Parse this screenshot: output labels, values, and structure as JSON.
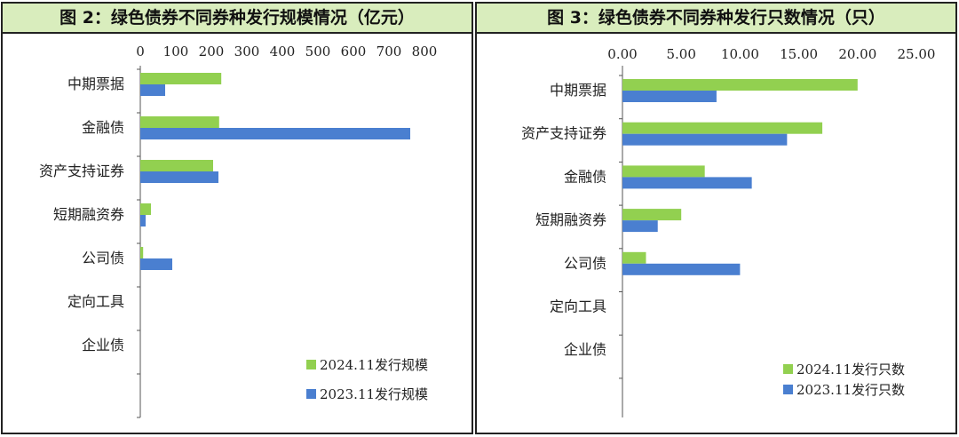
{
  "chart_data": [
    {
      "type": "bar",
      "title": "图 2：绿色债券不同券种发行规模情况（亿元）",
      "categories": [
        "中期票据",
        "金融债",
        "资产支持证券",
        "短期融资券",
        "公司债",
        "定向工具",
        "企业债"
      ],
      "series": [
        {
          "name": "2024.11发行规模",
          "color": "#92d050",
          "values": [
            228,
            222,
            205,
            30,
            8,
            0,
            0
          ]
        },
        {
          "name": "2023.11发行规模",
          "color": "#4a7fd0",
          "values": [
            70,
            760,
            220,
            15,
            90,
            0,
            0
          ]
        }
      ],
      "xticks": [
        "0",
        "100",
        "200",
        "300",
        "400",
        "500",
        "600",
        "700",
        "800"
      ],
      "xlim": [
        0,
        800
      ],
      "orientation": "horizontal",
      "axis_position": "top",
      "legend": "bottom-right"
    },
    {
      "type": "bar",
      "title": "图 3：绿色债券不同券种发行只数情况（只）",
      "categories": [
        "中期票据",
        "资产支持证券",
        "金融债",
        "短期融资券",
        "公司债",
        "定向工具",
        "企业债"
      ],
      "series": [
        {
          "name": "2024.11发行只数",
          "color": "#92d050",
          "values": [
            20,
            17,
            7,
            5,
            2,
            0,
            0
          ]
        },
        {
          "name": "2023.11发行只数",
          "color": "#4a7fd0",
          "values": [
            8,
            14,
            11,
            3,
            10,
            0,
            0
          ]
        }
      ],
      "xticks": [
        "0.00",
        "5.00",
        "10.00",
        "15.00",
        "20.00",
        "25.00"
      ],
      "xlim": [
        0,
        25
      ],
      "orientation": "horizontal",
      "axis_position": "top",
      "legend": "bottom-right"
    }
  ]
}
